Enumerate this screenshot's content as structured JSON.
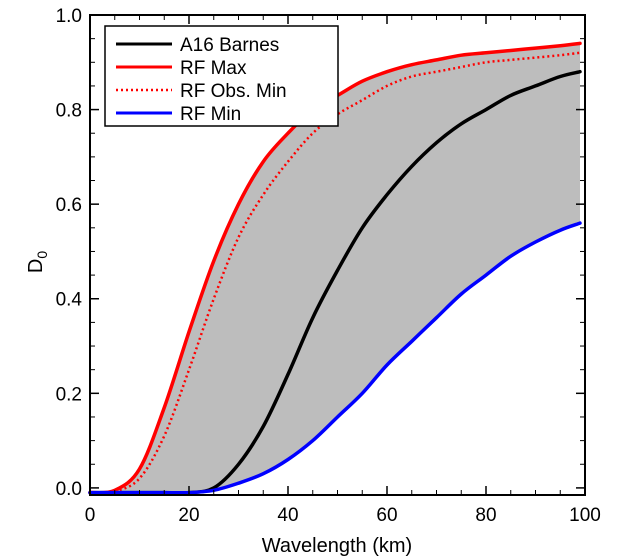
{
  "chart_data": {
    "type": "line",
    "title": "",
    "xlabel": "Wavelength (km)",
    "ylabel": "D",
    "ylabel_subscript": "0",
    "xlim": [
      0,
      100
    ],
    "ylim": [
      -0.015,
      1.0
    ],
    "xticks": [
      0,
      20,
      40,
      60,
      80,
      100
    ],
    "yticks": [
      0.0,
      0.2,
      0.4,
      0.6,
      0.8,
      1.0
    ],
    "ytick_labels": [
      "0.0",
      "0.2",
      "0.4",
      "0.6",
      "0.8",
      "1.0"
    ],
    "grid": false,
    "legend_position": "top-left",
    "shaded_region": {
      "between": [
        "RF Min",
        "RF Max"
      ],
      "color": "#bdbdbd"
    },
    "x": [
      0,
      5,
      10,
      15,
      20,
      25,
      30,
      35,
      40,
      45,
      50,
      55,
      60,
      65,
      70,
      75,
      80,
      85,
      90,
      95,
      99
    ],
    "series": [
      {
        "name": "A16 Barnes",
        "color": "#000000",
        "style": "solid",
        "values": [
          -0.01,
          -0.01,
          -0.01,
          -0.01,
          -0.01,
          0.0,
          0.05,
          0.13,
          0.24,
          0.36,
          0.46,
          0.55,
          0.62,
          0.68,
          0.73,
          0.77,
          0.8,
          0.83,
          0.85,
          0.87,
          0.88
        ]
      },
      {
        "name": "RF Max",
        "color": "#ff0000",
        "style": "solid",
        "values": [
          -0.01,
          -0.005,
          0.04,
          0.17,
          0.33,
          0.48,
          0.6,
          0.69,
          0.75,
          0.8,
          0.83,
          0.86,
          0.88,
          0.895,
          0.905,
          0.915,
          0.92,
          0.925,
          0.93,
          0.935,
          0.94
        ]
      },
      {
        "name": "RF Obs. Min",
        "color": "#ff0000",
        "style": "dotted",
        "values": [
          -0.01,
          -0.007,
          0.02,
          0.11,
          0.25,
          0.4,
          0.53,
          0.62,
          0.69,
          0.75,
          0.79,
          0.82,
          0.85,
          0.87,
          0.88,
          0.89,
          0.9,
          0.905,
          0.91,
          0.915,
          0.92
        ]
      },
      {
        "name": "RF Min",
        "color": "#0000ff",
        "style": "solid",
        "values": [
          -0.01,
          -0.01,
          -0.01,
          -0.01,
          -0.01,
          -0.005,
          0.01,
          0.03,
          0.06,
          0.1,
          0.15,
          0.2,
          0.26,
          0.31,
          0.36,
          0.41,
          0.45,
          0.49,
          0.52,
          0.545,
          0.56
        ]
      }
    ]
  }
}
